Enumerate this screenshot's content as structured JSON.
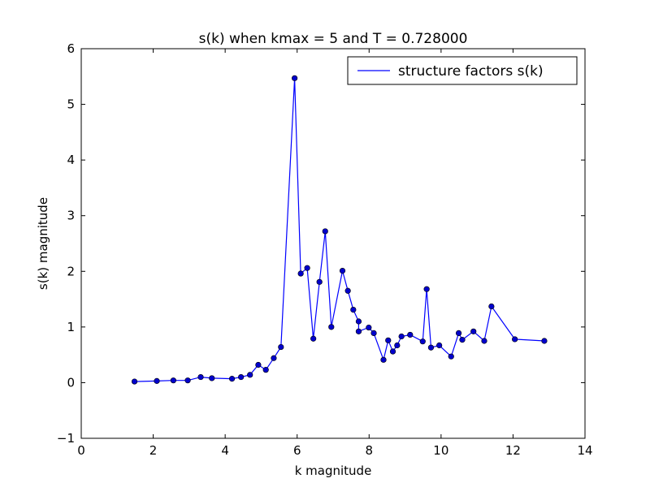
{
  "chart_data": {
    "type": "line",
    "title": "s(k) when kmax = 5 and T = 0.728000",
    "xlabel": "k magnitude",
    "ylabel": "s(k) magnitude",
    "xlim": [
      0,
      14
    ],
    "ylim": [
      -1,
      6
    ],
    "xticks": [
      0,
      2,
      4,
      6,
      8,
      10,
      12,
      14
    ],
    "yticks": [
      -1,
      0,
      1,
      2,
      3,
      4,
      5,
      6
    ],
    "grid": false,
    "legend": "top-right",
    "series": [
      {
        "name": "structure factors s(k)",
        "color": "#0000ff",
        "marker": "circle",
        "marker_color": "#0000cc",
        "x": [
          1.48,
          2.1,
          2.56,
          2.96,
          3.32,
          3.63,
          4.19,
          4.44,
          4.69,
          4.92,
          5.13,
          5.35,
          5.55,
          5.93,
          6.1,
          6.28,
          6.45,
          6.62,
          6.78,
          6.95,
          7.26,
          7.41,
          7.56,
          7.71,
          7.71,
          7.99,
          8.13,
          8.4,
          8.53,
          8.66,
          8.78,
          8.9,
          9.14,
          9.49,
          9.6,
          9.72,
          9.95,
          10.28,
          10.49,
          10.59,
          10.9,
          11.2,
          11.4,
          12.05,
          12.87
        ],
        "y": [
          0.02,
          0.03,
          0.04,
          0.04,
          0.1,
          0.08,
          0.07,
          0.1,
          0.14,
          0.32,
          0.23,
          0.44,
          0.64,
          5.47,
          1.96,
          2.06,
          0.79,
          1.81,
          2.72,
          1.0,
          2.01,
          1.65,
          1.31,
          1.1,
          0.92,
          0.99,
          0.89,
          0.41,
          0.76,
          0.56,
          0.67,
          0.83,
          0.86,
          0.74,
          1.68,
          0.63,
          0.67,
          0.47,
          0.89,
          0.77,
          0.92,
          0.75,
          1.37,
          0.78,
          0.75
        ]
      }
    ]
  }
}
